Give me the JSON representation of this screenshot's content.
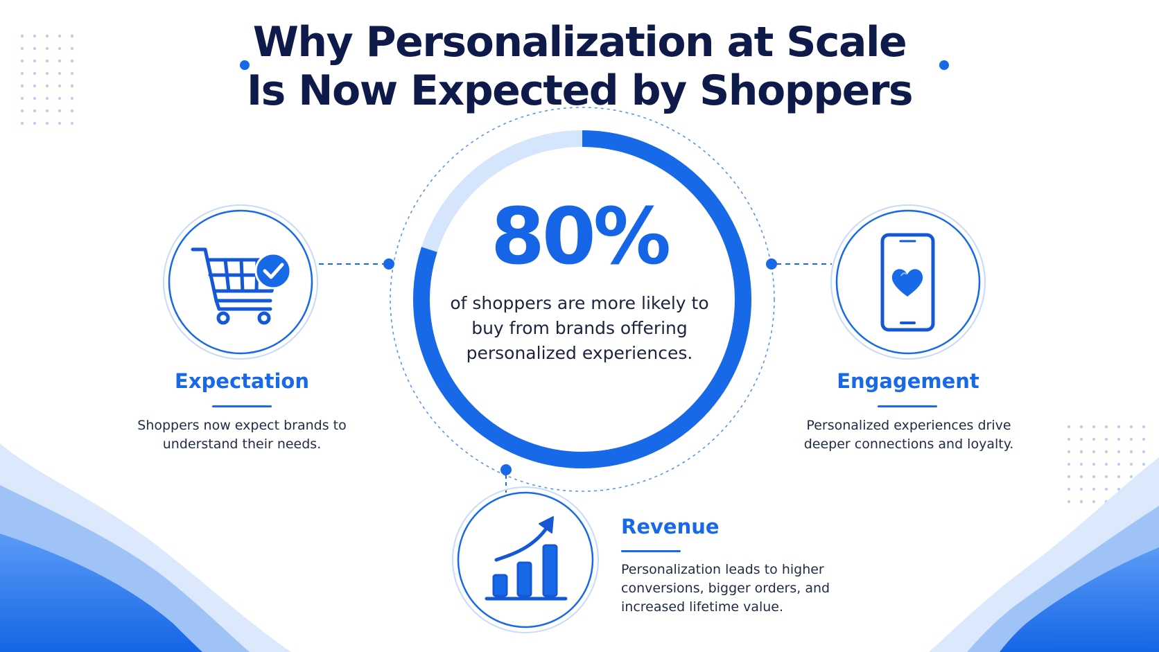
{
  "header": {
    "title_line_1": "Why Personalization at Scale",
    "title_line_2": "Is Now Expected by Shoppers"
  },
  "stat": {
    "value": "80%",
    "progress_fraction": 0.8,
    "caption": "of shoppers are more likely to buy from brands offering personalized experiences."
  },
  "features": {
    "expectation": {
      "title": "Expectation",
      "description": "Shoppers now expect brands to understand their needs.",
      "icon": "shopping-cart-check-icon"
    },
    "engagement": {
      "title": "Engagement",
      "description": "Personalized experiences drive deeper connections and loyalty.",
      "icon": "smartphone-heart-icon"
    },
    "revenue": {
      "title": "Revenue",
      "description": "Personalization leads to higher conversions, bigger orders, and increased lifetime value.",
      "icon": "bar-chart-growth-icon"
    }
  },
  "colors": {
    "accent": "#1769e8",
    "title": "#0d1a4a",
    "ring_track": "#d5e5fb",
    "wave_light": "#c9ddfb",
    "wave_dark": "#1b6ff0"
  }
}
